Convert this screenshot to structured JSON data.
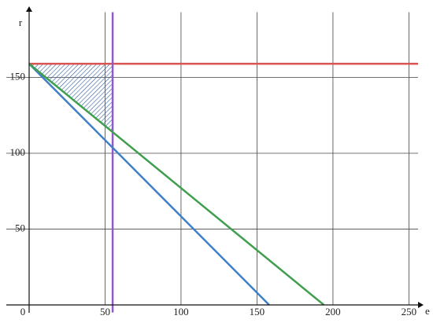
{
  "chart_data": {
    "type": "line",
    "x_label": "e",
    "y_label": "r",
    "xlim": [
      -15,
      256
    ],
    "ylim": [
      -5,
      193
    ],
    "xticks": [
      0,
      50,
      100,
      150,
      200,
      250
    ],
    "yticks": [
      50,
      100,
      150
    ],
    "grid": true,
    "series": [
      {
        "color": "#d9534f",
        "x": [
          0,
          256
        ],
        "values": [
          159,
          159
        ]
      },
      {
        "color": "#8e5cc4",
        "x": [
          55,
          55
        ],
        "values": [
          -5,
          193
        ]
      },
      {
        "color": "#3f7fc7",
        "x": [
          0,
          158
        ],
        "values": [
          159,
          0
        ]
      },
      {
        "color": "#3f9f4f",
        "x": [
          0,
          194
        ],
        "values": [
          159,
          0
        ]
      }
    ],
    "region": {
      "color": "#2f5f9f",
      "x": [
        0,
        55,
        55
      ],
      "values": [
        159,
        159,
        114
      ]
    }
  }
}
